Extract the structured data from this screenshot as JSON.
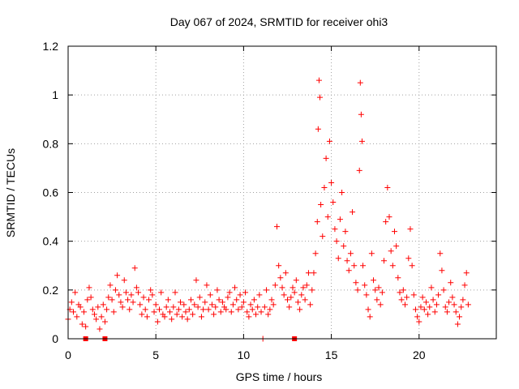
{
  "chart_data": {
    "type": "scatter",
    "title": "Day 067 of 2024, SRMTID for receiver ohi3",
    "xlabel": "GPS time / hours",
    "ylabel": "SRMTID / TECUs",
    "xlim": [
      0,
      24.4
    ],
    "ylim": [
      0,
      1.2
    ],
    "x_ticks": [
      0,
      5,
      10,
      15,
      20
    ],
    "x_tick_labels": [
      "0",
      "5",
      "10",
      "15",
      "20"
    ],
    "y_ticks": [
      0,
      0.2,
      0.4,
      0.6,
      0.8,
      1.0,
      1.2
    ],
    "y_tick_labels": [
      "0",
      "0.2",
      "0.4",
      "0.6",
      "0.8",
      "1",
      "1.2"
    ],
    "grid": true,
    "marker": "plus",
    "series": [
      {
        "name": "SRMTID",
        "color": "#ff0000",
        "points": [
          [
            0.0,
            0.08
          ],
          [
            0.1,
            0.12
          ],
          [
            0.2,
            0.15
          ],
          [
            0.3,
            0.11
          ],
          [
            0.4,
            0.19
          ],
          [
            0.5,
            0.09
          ],
          [
            0.6,
            0.14
          ],
          [
            0.7,
            0.13
          ],
          [
            0.8,
            0.06
          ],
          [
            0.9,
            0.11
          ],
          [
            1.0,
            0.05
          ],
          [
            1.1,
            0.16
          ],
          [
            1.2,
            0.21
          ],
          [
            1.3,
            0.17
          ],
          [
            1.4,
            0.12
          ],
          [
            1.5,
            0.1
          ],
          [
            1.6,
            0.08
          ],
          [
            1.7,
            0.13
          ],
          [
            1.8,
            0.04
          ],
          [
            1.9,
            0.09
          ],
          [
            2.0,
            0.14
          ],
          [
            2.1,
            0.07
          ],
          [
            2.2,
            0.12
          ],
          [
            2.3,
            0.17
          ],
          [
            2.4,
            0.22
          ],
          [
            2.5,
            0.16
          ],
          [
            2.6,
            0.11
          ],
          [
            2.7,
            0.2
          ],
          [
            2.8,
            0.26
          ],
          [
            2.9,
            0.18
          ],
          [
            3.0,
            0.15
          ],
          [
            3.1,
            0.13
          ],
          [
            3.2,
            0.24
          ],
          [
            3.3,
            0.19
          ],
          [
            3.4,
            0.16
          ],
          [
            3.5,
            0.12
          ],
          [
            3.6,
            0.18
          ],
          [
            3.7,
            0.15
          ],
          [
            3.8,
            0.29
          ],
          [
            3.9,
            0.21
          ],
          [
            4.0,
            0.19
          ],
          [
            4.1,
            0.14
          ],
          [
            4.2,
            0.1
          ],
          [
            4.3,
            0.17
          ],
          [
            4.4,
            0.12
          ],
          [
            4.5,
            0.09
          ],
          [
            4.6,
            0.16
          ],
          [
            4.7,
            0.2
          ],
          [
            4.8,
            0.18
          ],
          [
            4.9,
            0.11
          ],
          [
            5.0,
            0.14
          ],
          [
            5.1,
            0.07
          ],
          [
            5.2,
            0.12
          ],
          [
            5.3,
            0.19
          ],
          [
            5.4,
            0.1
          ],
          [
            5.5,
            0.09
          ],
          [
            5.6,
            0.13
          ],
          [
            5.7,
            0.16
          ],
          [
            5.8,
            0.11
          ],
          [
            5.9,
            0.08
          ],
          [
            6.0,
            0.13
          ],
          [
            6.1,
            0.19
          ],
          [
            6.2,
            0.1
          ],
          [
            6.3,
            0.12
          ],
          [
            6.4,
            0.15
          ],
          [
            6.5,
            0.09
          ],
          [
            6.6,
            0.14
          ],
          [
            6.7,
            0.11
          ],
          [
            6.8,
            0.08
          ],
          [
            6.9,
            0.12
          ],
          [
            7.0,
            0.16
          ],
          [
            7.1,
            0.1
          ],
          [
            7.2,
            0.14
          ],
          [
            7.3,
            0.24
          ],
          [
            7.4,
            0.13
          ],
          [
            7.5,
            0.17
          ],
          [
            7.6,
            0.09
          ],
          [
            7.7,
            0.12
          ],
          [
            7.8,
            0.15
          ],
          [
            7.9,
            0.22
          ],
          [
            8.0,
            0.12
          ],
          [
            8.1,
            0.18
          ],
          [
            8.2,
            0.14
          ],
          [
            8.3,
            0.1
          ],
          [
            8.4,
            0.13
          ],
          [
            8.5,
            0.2
          ],
          [
            8.6,
            0.16
          ],
          [
            8.7,
            0.11
          ],
          [
            8.8,
            0.15
          ],
          [
            8.9,
            0.13
          ],
          [
            9.0,
            0.12
          ],
          [
            9.1,
            0.17
          ],
          [
            9.2,
            0.19
          ],
          [
            9.3,
            0.11
          ],
          [
            9.4,
            0.14
          ],
          [
            9.5,
            0.21
          ],
          [
            9.6,
            0.16
          ],
          [
            9.7,
            0.12
          ],
          [
            9.8,
            0.18
          ],
          [
            9.9,
            0.13
          ],
          [
            10.0,
            0.15
          ],
          [
            10.1,
            0.19
          ],
          [
            10.2,
            0.11
          ],
          [
            10.3,
            0.09
          ],
          [
            10.4,
            0.14
          ],
          [
            10.5,
            0.12
          ],
          [
            10.6,
            0.16
          ],
          [
            10.7,
            0.1
          ],
          [
            10.8,
            0.13
          ],
          [
            10.9,
            0.18
          ],
          [
            11.0,
            0.11
          ],
          [
            11.1,
            0.0
          ],
          [
            11.2,
            0.13
          ],
          [
            11.3,
            0.2
          ],
          [
            11.4,
            0.1
          ],
          [
            11.5,
            0.12
          ],
          [
            11.6,
            0.16
          ],
          [
            11.7,
            0.14
          ],
          [
            11.8,
            0.22
          ],
          [
            11.9,
            0.46
          ],
          [
            12.0,
            0.3
          ],
          [
            12.1,
            0.25
          ],
          [
            12.2,
            0.21
          ],
          [
            12.3,
            0.18
          ],
          [
            12.4,
            0.27
          ],
          [
            12.5,
            0.16
          ],
          [
            12.6,
            0.13
          ],
          [
            12.7,
            0.17
          ],
          [
            12.8,
            0.21
          ],
          [
            12.9,
            0.19
          ],
          [
            13.0,
            0.24
          ],
          [
            13.1,
            0.15
          ],
          [
            13.2,
            0.12
          ],
          [
            13.3,
            0.18
          ],
          [
            13.4,
            0.21
          ],
          [
            13.5,
            0.16
          ],
          [
            13.6,
            0.22
          ],
          [
            13.7,
            0.27
          ],
          [
            13.8,
            0.14
          ],
          [
            13.9,
            0.2
          ],
          [
            14.0,
            0.27
          ],
          [
            14.1,
            0.35
          ],
          [
            14.2,
            0.48
          ],
          [
            14.25,
            0.86
          ],
          [
            14.3,
            1.06
          ],
          [
            14.35,
            0.99
          ],
          [
            14.4,
            0.55
          ],
          [
            14.5,
            0.42
          ],
          [
            14.6,
            0.62
          ],
          [
            14.7,
            0.74
          ],
          [
            14.8,
            0.5
          ],
          [
            14.9,
            0.81
          ],
          [
            15.0,
            0.64
          ],
          [
            15.1,
            0.56
          ],
          [
            15.2,
            0.45
          ],
          [
            15.3,
            0.4
          ],
          [
            15.4,
            0.33
          ],
          [
            15.5,
            0.49
          ],
          [
            15.6,
            0.6
          ],
          [
            15.7,
            0.38
          ],
          [
            15.8,
            0.44
          ],
          [
            15.9,
            0.32
          ],
          [
            16.0,
            0.28
          ],
          [
            16.1,
            0.35
          ],
          [
            16.2,
            0.52
          ],
          [
            16.3,
            0.3
          ],
          [
            16.4,
            0.23
          ],
          [
            16.5,
            0.2
          ],
          [
            16.6,
            0.69
          ],
          [
            16.65,
            1.05
          ],
          [
            16.7,
            0.92
          ],
          [
            16.75,
            0.81
          ],
          [
            16.8,
            0.3
          ],
          [
            16.9,
            0.22
          ],
          [
            17.0,
            0.18
          ],
          [
            17.1,
            0.12
          ],
          [
            17.2,
            0.09
          ],
          [
            17.3,
            0.35
          ],
          [
            17.4,
            0.24
          ],
          [
            17.5,
            0.2
          ],
          [
            17.6,
            0.16
          ],
          [
            17.7,
            0.21
          ],
          [
            17.8,
            0.14
          ],
          [
            17.9,
            0.19
          ],
          [
            18.0,
            0.32
          ],
          [
            18.1,
            0.48
          ],
          [
            18.2,
            0.62
          ],
          [
            18.3,
            0.5
          ],
          [
            18.4,
            0.36
          ],
          [
            18.5,
            0.3
          ],
          [
            18.6,
            0.44
          ],
          [
            18.7,
            0.38
          ],
          [
            18.8,
            0.25
          ],
          [
            18.9,
            0.19
          ],
          [
            19.0,
            0.16
          ],
          [
            19.1,
            0.2
          ],
          [
            19.2,
            0.14
          ],
          [
            19.3,
            0.17
          ],
          [
            19.4,
            0.33
          ],
          [
            19.5,
            0.45
          ],
          [
            19.6,
            0.3
          ],
          [
            19.7,
            0.18
          ],
          [
            19.8,
            0.12
          ],
          [
            19.9,
            0.09
          ],
          [
            20.0,
            0.07
          ],
          [
            20.1,
            0.13
          ],
          [
            20.2,
            0.17
          ],
          [
            20.3,
            0.12
          ],
          [
            20.4,
            0.15
          ],
          [
            20.5,
            0.1
          ],
          [
            20.6,
            0.13
          ],
          [
            20.7,
            0.21
          ],
          [
            20.8,
            0.16
          ],
          [
            20.9,
            0.11
          ],
          [
            21.0,
            0.14
          ],
          [
            21.1,
            0.18
          ],
          [
            21.2,
            0.35
          ],
          [
            21.3,
            0.28
          ],
          [
            21.4,
            0.2
          ],
          [
            21.5,
            0.13
          ],
          [
            21.6,
            0.11
          ],
          [
            21.7,
            0.15
          ],
          [
            21.8,
            0.23
          ],
          [
            21.9,
            0.17
          ],
          [
            22.0,
            0.14
          ],
          [
            22.1,
            0.11
          ],
          [
            22.2,
            0.06
          ],
          [
            22.3,
            0.09
          ],
          [
            22.4,
            0.13
          ],
          [
            22.5,
            0.16
          ],
          [
            22.6,
            0.22
          ],
          [
            22.7,
            0.27
          ],
          [
            22.8,
            0.14
          ]
        ]
      }
    ],
    "markers_on_axis": [
      [
        1.0,
        0.0
      ],
      [
        2.1,
        0.0
      ],
      [
        12.9,
        0.0
      ]
    ]
  }
}
